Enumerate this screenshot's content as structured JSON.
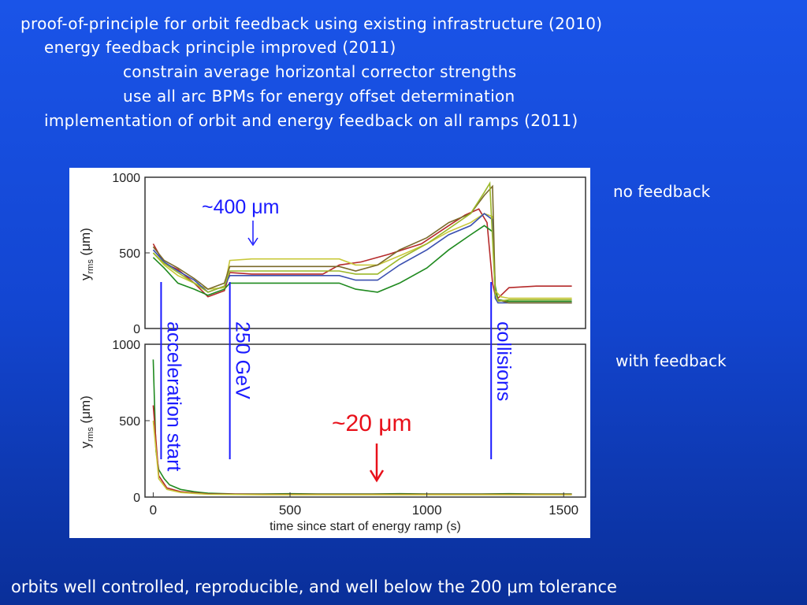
{
  "bullets": [
    "proof-of-principle for orbit feedback using existing infrastructure (2010)",
    "energy feedback principle improved (2011)",
    "constrain average horizontal corrector strengths",
    "use all arc BPMs for energy offset determination",
    "implementation of orbit and energy feedback on all ramps (2011)"
  ],
  "labels": {
    "no_feedback": "no feedback",
    "with_feedback": "with feedback",
    "footer": "orbits well controlled,  reproducible, and well below the 200 μm tolerance"
  },
  "chart_data": {
    "type": "line",
    "xlabel": "time since start of energy ramp (s)",
    "x_ticks": [
      "0",
      "500",
      "1000",
      "1500"
    ],
    "xlim": [
      -30,
      1580
    ],
    "panels": [
      {
        "ylabel": "y",
        "ylabel_sub": "rms",
        "ylabel_unit": "(μm)",
        "y_ticks": [
          "0",
          "500",
          "1000"
        ],
        "ylim": [
          0,
          1000
        ],
        "annotation": "~400 μm",
        "annotation_color": "#1a1aff",
        "series": [
          {
            "color": "#b52a2a",
            "x": [
              0,
              40,
              90,
              150,
              200,
              260,
              280,
              360,
              440,
              540,
              620,
              680,
              760,
              860,
              980,
              1080,
              1140,
              1190,
              1220,
              1240,
              1250,
              1260,
              1300,
              1400,
              1530
            ],
            "y": [
              560,
              430,
              390,
              300,
              210,
              250,
              370,
              360,
              360,
              360,
              360,
              420,
              440,
              490,
              560,
              680,
              750,
              790,
              700,
              300,
              220,
              200,
              270,
              280,
              280
            ]
          },
          {
            "color": "#1f8a1f",
            "x": [
              0,
              40,
              90,
              150,
              200,
              260,
              280,
              360,
              460,
              560,
              680,
              740,
              820,
              900,
              1000,
              1080,
              1160,
              1210,
              1240,
              1250,
              1260,
              1300,
              1400,
              1530
            ],
            "y": [
              470,
              400,
              300,
              260,
              220,
              260,
              300,
              300,
              300,
              300,
              300,
              260,
              240,
              300,
              400,
              520,
              620,
              680,
              640,
              280,
              190,
              180,
              180,
              180
            ]
          },
          {
            "color": "#c8c83a",
            "x": [
              0,
              40,
              90,
              150,
              200,
              260,
              280,
              360,
              460,
              560,
              680,
              740,
              820,
              900,
              1000,
              1080,
              1160,
              1210,
              1240,
              1250,
              1270,
              1300,
              1400,
              1530
            ],
            "y": [
              500,
              420,
              350,
              300,
              260,
              270,
              450,
              460,
              460,
              460,
              460,
              420,
              420,
              480,
              560,
              640,
              700,
              760,
              740,
              250,
              210,
              200,
              200,
              200
            ]
          },
          {
            "color": "#3a4fb0",
            "x": [
              0,
              40,
              90,
              150,
              200,
              260,
              280,
              360,
              460,
              560,
              680,
              740,
              820,
              900,
              1000,
              1080,
              1160,
              1210,
              1240,
              1250,
              1260,
              1300,
              1400,
              1530
            ],
            "y": [
              520,
              440,
              380,
              320,
              240,
              280,
              350,
              350,
              350,
              350,
              350,
              320,
              320,
              420,
              520,
              620,
              680,
              760,
              720,
              200,
              170,
              170,
              170,
              170
            ]
          },
          {
            "color": "#7a6a2a",
            "x": [
              0,
              40,
              90,
              150,
              200,
              260,
              280,
              360,
              460,
              560,
              680,
              740,
              820,
              900,
              1000,
              1080,
              1160,
              1210,
              1240,
              1250,
              1260,
              1300,
              1400,
              1530
            ],
            "y": [
              540,
              450,
              400,
              330,
              260,
              300,
              410,
              410,
              410,
              410,
              410,
              380,
              420,
              520,
              600,
              700,
              760,
              880,
              940,
              240,
              190,
              170,
              170,
              170
            ]
          },
          {
            "color": "#9cb82a",
            "x": [
              0,
              40,
              90,
              150,
              200,
              260,
              280,
              360,
              460,
              560,
              680,
              740,
              820,
              900,
              1000,
              1080,
              1160,
              1210,
              1230,
              1250,
              1260,
              1300,
              1400,
              1530
            ],
            "y": [
              500,
              430,
              370,
              300,
              240,
              280,
              380,
              380,
              380,
              380,
              380,
              360,
              360,
              460,
              560,
              660,
              760,
              900,
              960,
              230,
              180,
              190,
              190,
              190
            ]
          }
        ]
      },
      {
        "ylabel": "y",
        "ylabel_sub": "rms",
        "ylabel_unit": "(μm)",
        "y_ticks": [
          "0",
          "500",
          "1000"
        ],
        "ylim": [
          0,
          1000
        ],
        "annotation": "~20 μm",
        "annotation_color": "#e8101a",
        "series": [
          {
            "color": "#1f8a1f",
            "x": [
              0,
              10,
              20,
              40,
              60,
              100,
              150,
              200,
              300,
              400,
              500,
              600,
              700,
              800,
              900,
              1000,
              1100,
              1200,
              1300,
              1400,
              1530
            ],
            "y": [
              900,
              300,
              180,
              120,
              80,
              50,
              35,
              25,
              20,
              20,
              22,
              20,
              20,
              20,
              22,
              20,
              20,
              20,
              22,
              20,
              20
            ]
          },
          {
            "color": "#b52a2a",
            "x": [
              0,
              20,
              50,
              100,
              200,
              400,
              600,
              800,
              1000,
              1200,
              1400,
              1530
            ],
            "y": [
              600,
              140,
              60,
              35,
              20,
              18,
              18,
              18,
              18,
              18,
              18,
              18
            ]
          },
          {
            "color": "#c8c83a",
            "x": [
              0,
              20,
              50,
              100,
              200,
              400,
              600,
              800,
              1000,
              1200,
              1400,
              1530
            ],
            "y": [
              500,
              120,
              50,
              30,
              18,
              15,
              15,
              15,
              15,
              15,
              15,
              15
            ]
          }
        ]
      }
    ],
    "markers": [
      {
        "x": 0,
        "text": "acceleration start"
      },
      {
        "x": 280,
        "text": "250 GeV"
      },
      {
        "x": 1235,
        "text": "collisions"
      }
    ]
  }
}
